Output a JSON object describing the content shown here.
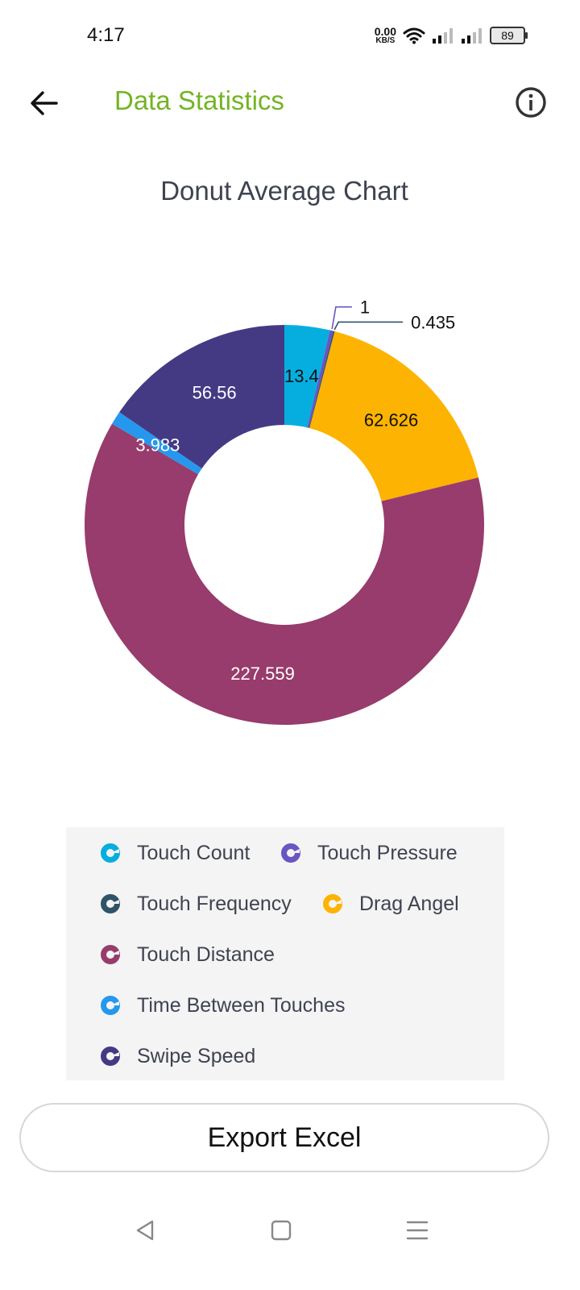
{
  "status_bar": {
    "time": "4:17",
    "net_speed_value": "0.00",
    "net_speed_unit": "KB/S",
    "battery": "89"
  },
  "app_bar": {
    "title": "Data Statistics",
    "title_color": "#74b424",
    "back_icon": "arrow-left-icon",
    "info_icon": "info-circle-icon"
  },
  "chart_data": {
    "type": "pie",
    "title": "Donut Average Chart",
    "categories": [
      "Touch Count",
      "Touch Pressure",
      "Touch Frequency",
      "Drag Angel",
      "Touch Distance",
      "Time Between Touches",
      "Swipe Speed"
    ],
    "values": [
      13.4,
      1,
      0.435,
      62.626,
      227.559,
      3.983,
      56.56
    ],
    "labels": [
      "13.4",
      "1",
      "0.435",
      "62.626",
      "227.559",
      "3.983",
      "56.56"
    ],
    "colors": [
      "#06aee0",
      "#6a55c4",
      "#2f5368",
      "#fdb301",
      "#973c6c",
      "#2598ee",
      "#443a84"
    ],
    "donut": true,
    "legend_position": "bottom"
  },
  "legend": {
    "icon": "donut-legend-icon"
  },
  "export_button": {
    "label": "Export Excel"
  },
  "nav_bar": {
    "back_icon": "triangle-back-icon",
    "home_icon": "square-home-icon",
    "menu_icon": "menu-lines-icon"
  }
}
